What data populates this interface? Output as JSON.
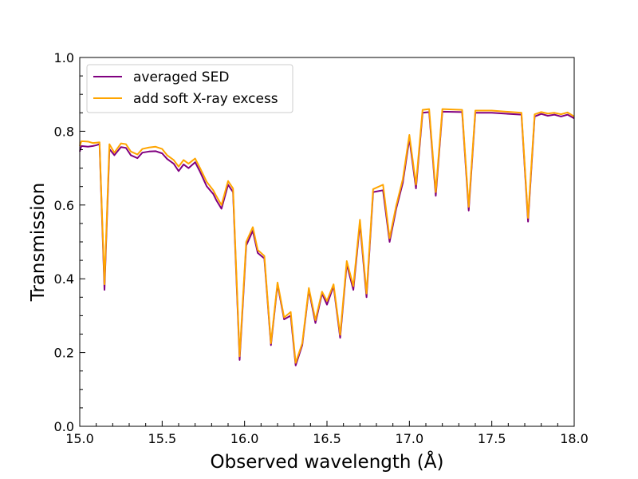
{
  "chart_data": {
    "type": "line",
    "title": "",
    "xlabel": "Observed wavelength (Å)",
    "ylabel": "Transmission",
    "xlim": [
      15.0,
      18.0
    ],
    "ylim": [
      0.0,
      1.0
    ],
    "xticks": [
      15.0,
      15.5,
      16.0,
      16.5,
      17.0,
      17.5,
      18.0
    ],
    "xtick_labels": [
      "15.0",
      "15.5",
      "16.0",
      "16.5",
      "17.0",
      "17.5",
      "18.0"
    ],
    "yticks": [
      0.0,
      0.2,
      0.4,
      0.6,
      0.8,
      1.0
    ],
    "ytick_labels": [
      "0.0",
      "0.2",
      "0.4",
      "0.6",
      "0.8",
      "1.0"
    ],
    "legend_position": "top-left",
    "series": [
      {
        "name": "averaged SED",
        "color": "#800080",
        "x": [
          15.0,
          15.01,
          15.05,
          15.08,
          15.1,
          15.12,
          15.15,
          15.18,
          15.21,
          15.25,
          15.28,
          15.31,
          15.35,
          15.38,
          15.42,
          15.46,
          15.5,
          15.53,
          15.57,
          15.6,
          15.63,
          15.66,
          15.7,
          15.73,
          15.77,
          15.81,
          15.83,
          15.86,
          15.9,
          15.93,
          15.97,
          16.01,
          16.05,
          16.08,
          16.12,
          16.16,
          16.2,
          16.24,
          16.28,
          16.31,
          16.35,
          16.39,
          16.43,
          16.47,
          16.5,
          16.54,
          16.58,
          16.62,
          16.66,
          16.7,
          16.74,
          16.78,
          16.84,
          16.88,
          16.92,
          16.96,
          17.0,
          17.04,
          17.08,
          17.12,
          17.16,
          17.2,
          17.32,
          17.36,
          17.4,
          17.5,
          17.68,
          17.72,
          17.76,
          17.8,
          17.84,
          17.88,
          17.92,
          17.96,
          18.0
        ],
        "values": [
          0.745,
          0.76,
          0.758,
          0.76,
          0.762,
          0.765,
          0.37,
          0.752,
          0.735,
          0.757,
          0.755,
          0.735,
          0.727,
          0.742,
          0.745,
          0.746,
          0.74,
          0.725,
          0.712,
          0.692,
          0.71,
          0.7,
          0.716,
          0.69,
          0.651,
          0.63,
          0.612,
          0.59,
          0.655,
          0.635,
          0.18,
          0.49,
          0.53,
          0.47,
          0.455,
          0.22,
          0.385,
          0.29,
          0.3,
          0.165,
          0.22,
          0.37,
          0.28,
          0.36,
          0.33,
          0.38,
          0.24,
          0.44,
          0.37,
          0.55,
          0.35,
          0.635,
          0.64,
          0.5,
          0.59,
          0.66,
          0.78,
          0.645,
          0.85,
          0.852,
          0.625,
          0.853,
          0.852,
          0.585,
          0.85,
          0.85,
          0.845,
          0.555,
          0.84,
          0.847,
          0.842,
          0.845,
          0.84,
          0.845,
          0.835
        ]
      },
      {
        "name": "add soft X-ray excess",
        "color": "#FFA500",
        "x": [
          15.0,
          15.01,
          15.05,
          15.08,
          15.1,
          15.12,
          15.15,
          15.18,
          15.21,
          15.25,
          15.28,
          15.31,
          15.35,
          15.38,
          15.42,
          15.46,
          15.5,
          15.53,
          15.57,
          15.6,
          15.63,
          15.66,
          15.7,
          15.73,
          15.77,
          15.81,
          15.83,
          15.86,
          15.9,
          15.93,
          15.97,
          16.01,
          16.05,
          16.08,
          16.12,
          16.16,
          16.2,
          16.24,
          16.28,
          16.31,
          16.35,
          16.39,
          16.43,
          16.47,
          16.5,
          16.54,
          16.58,
          16.62,
          16.66,
          16.7,
          16.74,
          16.78,
          16.84,
          16.88,
          16.92,
          16.96,
          17.0,
          17.04,
          17.08,
          17.12,
          17.16,
          17.2,
          17.32,
          17.36,
          17.4,
          17.5,
          17.68,
          17.72,
          17.76,
          17.8,
          17.84,
          17.88,
          17.92,
          17.96,
          18.0
        ],
        "values": [
          0.76,
          0.773,
          0.772,
          0.768,
          0.769,
          0.77,
          0.385,
          0.765,
          0.742,
          0.767,
          0.765,
          0.745,
          0.737,
          0.752,
          0.756,
          0.758,
          0.752,
          0.735,
          0.722,
          0.704,
          0.722,
          0.712,
          0.726,
          0.7,
          0.663,
          0.64,
          0.623,
          0.6,
          0.665,
          0.645,
          0.19,
          0.5,
          0.54,
          0.478,
          0.462,
          0.225,
          0.39,
          0.295,
          0.31,
          0.172,
          0.225,
          0.375,
          0.288,
          0.365,
          0.34,
          0.385,
          0.248,
          0.448,
          0.38,
          0.56,
          0.36,
          0.643,
          0.655,
          0.51,
          0.598,
          0.67,
          0.79,
          0.655,
          0.858,
          0.86,
          0.635,
          0.86,
          0.858,
          0.595,
          0.856,
          0.856,
          0.85,
          0.565,
          0.846,
          0.852,
          0.848,
          0.85,
          0.846,
          0.851,
          0.84
        ]
      }
    ]
  }
}
